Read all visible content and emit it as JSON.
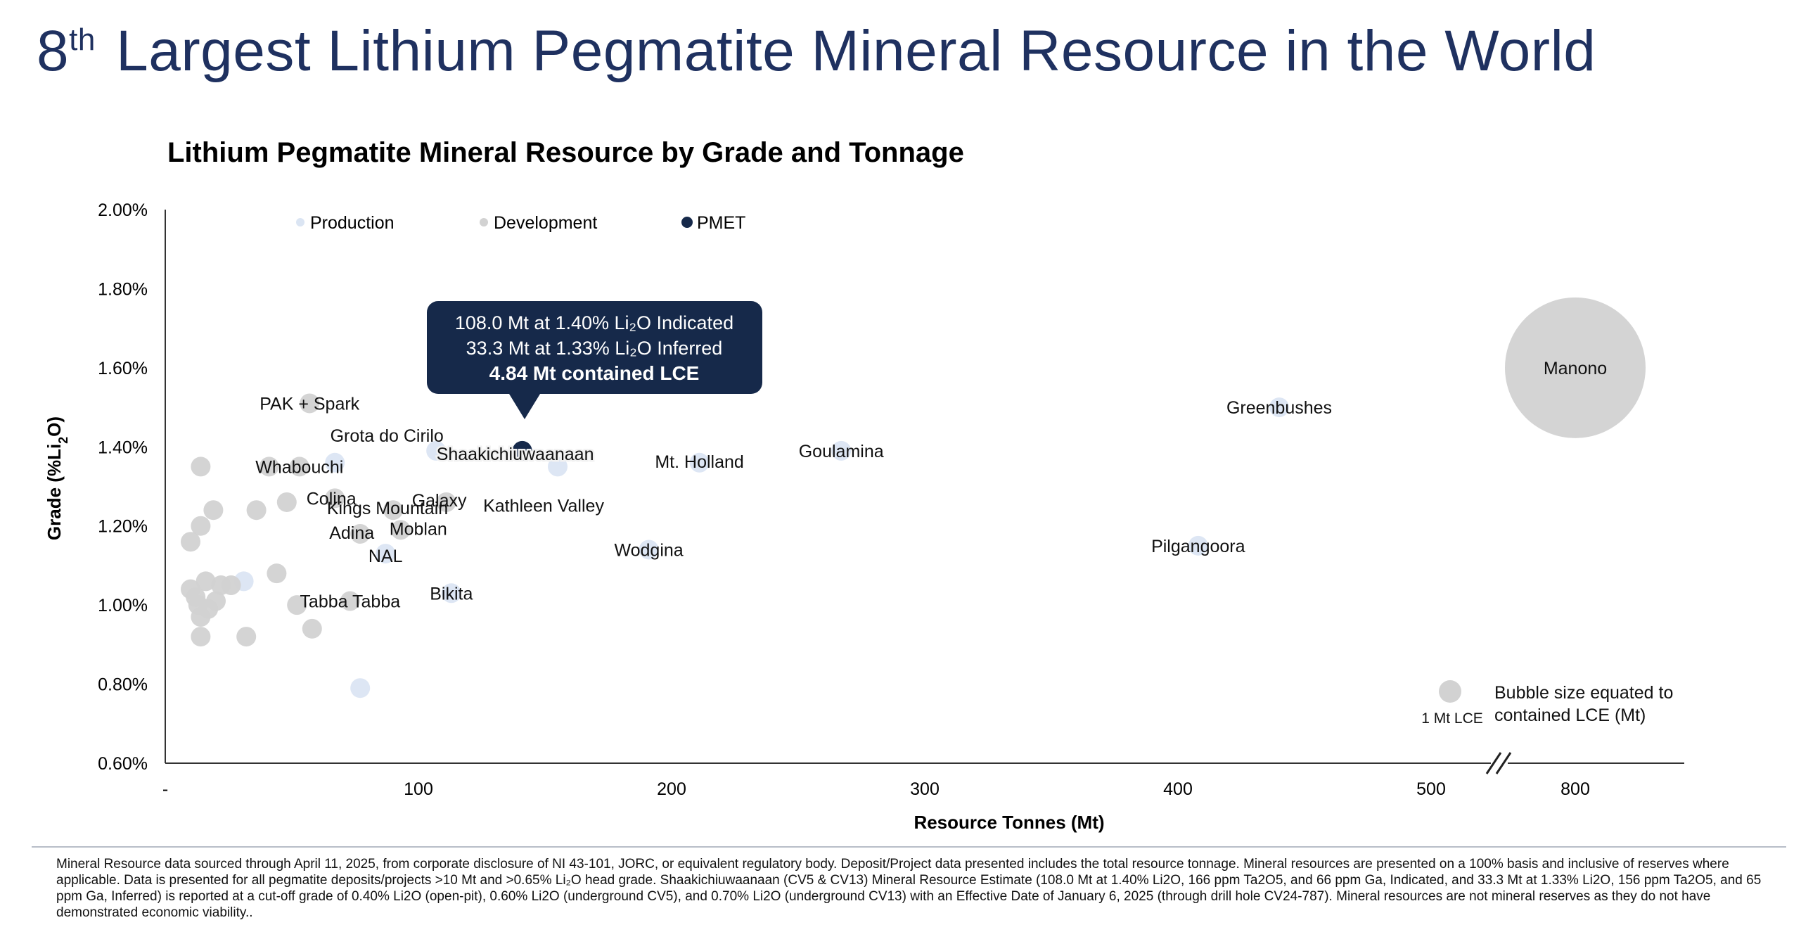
{
  "page": {
    "title_sup": "th",
    "title_num": "8",
    "title_rest": "Largest Lithium Pegmatite Mineral Resource in the World"
  },
  "chart_data": {
    "type": "bubble",
    "title": "Lithium Pegmatite Mineral Resource by Grade and Tonnage",
    "xlabel": "Resource Tonnes (Mt)",
    "ylabel": "Grade (%Li2O)",
    "ylim": [
      0.006,
      0.02
    ],
    "y_ticks": [
      "2.00%",
      "1.80%",
      "1.60%",
      "1.40%",
      "1.20%",
      "1.00%",
      "0.80%",
      "0.60%"
    ],
    "x_ticks": [
      "-",
      "100",
      "200",
      "300",
      "400",
      "500",
      "800"
    ],
    "axis_break": "between 500 and 800",
    "legend": [
      {
        "name": "Production",
        "color": "#dbe5f3"
      },
      {
        "name": "Development",
        "color": "#d2d2d2"
      },
      {
        "name": "PMET",
        "color": "#16294a"
      }
    ],
    "colors": {
      "Production": "#dbe5f3",
      "Development": "#d2d2d2",
      "PMET": "#16294a"
    },
    "callout": {
      "line1": "108.0 Mt at 1.40% Li₂O Indicated",
      "line2": "33.3 Mt at 1.33% Li₂O Inferred",
      "line3": "4.84 Mt contained LCE"
    },
    "size_note": {
      "line1": "Bubble size equated to",
      "line2": "contained LCE (Mt)",
      "ref_label": "1 Mt LCE",
      "ref_value": 1
    },
    "labeled_points": [
      {
        "name": "Manono",
        "x": 800,
        "y": 0.016,
        "group": "Development"
      },
      {
        "name": "Greenbushes",
        "x": 440,
        "y": 0.015,
        "group": "Production"
      },
      {
        "name": "Pilgangoora",
        "x": 408,
        "y": 0.0115,
        "group": "Production"
      },
      {
        "name": "Goulamina",
        "x": 267,
        "y": 0.0139,
        "group": "Production"
      },
      {
        "name": "Mt. Holland",
        "x": 211,
        "y": 0.0136,
        "group": "Production"
      },
      {
        "name": "Wodgina",
        "x": 191,
        "y": 0.0114,
        "group": "Production"
      },
      {
        "name": "Kathleen Valley",
        "x": 155,
        "y": 0.0135,
        "group": "Production"
      },
      {
        "name": "Shaakichiuwaanaan",
        "x": 141,
        "y": 0.0139,
        "group": "PMET"
      },
      {
        "name": "Grota do Cirilo",
        "x": 107,
        "y": 0.0139,
        "group": "Production"
      },
      {
        "name": "Galaxy",
        "x": 111,
        "y": 0.0126,
        "group": "Development"
      },
      {
        "name": "Kings Mountain",
        "x": 90,
        "y": 0.0124,
        "group": "Development"
      },
      {
        "name": "Moblan",
        "x": 93,
        "y": 0.0119,
        "group": "Development"
      },
      {
        "name": "NAL",
        "x": 87,
        "y": 0.0113,
        "group": "Production"
      },
      {
        "name": "Adina",
        "x": 77,
        "y": 0.0118,
        "group": "Development"
      },
      {
        "name": "Bikita",
        "x": 113,
        "y": 0.0103,
        "group": "Production"
      },
      {
        "name": "Tabba Tabba",
        "x": 73,
        "y": 0.0101,
        "group": "Development"
      },
      {
        "name": "PAK + Spark",
        "x": 57,
        "y": 0.0151,
        "group": "Development"
      },
      {
        "name": "Whabouchi",
        "x": 53,
        "y": 0.0135,
        "group": "Development"
      },
      {
        "name": "Colina",
        "x": 67,
        "y": 0.0127,
        "group": "Development"
      }
    ],
    "unlabeled_points": [
      {
        "x": 67,
        "y": 0.0136,
        "group": "Production"
      },
      {
        "x": 41,
        "y": 0.0135,
        "group": "Development"
      },
      {
        "x": 48,
        "y": 0.0126,
        "group": "Development"
      },
      {
        "x": 36,
        "y": 0.0124,
        "group": "Development"
      },
      {
        "x": 19,
        "y": 0.0124,
        "group": "Development"
      },
      {
        "x": 14,
        "y": 0.0135,
        "group": "Development"
      },
      {
        "x": 14,
        "y": 0.012,
        "group": "Development"
      },
      {
        "x": 10,
        "y": 0.0116,
        "group": "Development"
      },
      {
        "x": 44,
        "y": 0.0108,
        "group": "Development"
      },
      {
        "x": 31,
        "y": 0.0106,
        "group": "Production"
      },
      {
        "x": 26,
        "y": 0.0105,
        "group": "Development"
      },
      {
        "x": 22,
        "y": 0.0105,
        "group": "Development"
      },
      {
        "x": 16,
        "y": 0.0106,
        "group": "Development"
      },
      {
        "x": 10,
        "y": 0.0104,
        "group": "Development"
      },
      {
        "x": 12,
        "y": 0.0102,
        "group": "Development"
      },
      {
        "x": 20,
        "y": 0.0101,
        "group": "Development"
      },
      {
        "x": 13,
        "y": 0.01,
        "group": "Development"
      },
      {
        "x": 17,
        "y": 0.0099,
        "group": "Development"
      },
      {
        "x": 14,
        "y": 0.0097,
        "group": "Development"
      },
      {
        "x": 52,
        "y": 0.01,
        "group": "Development"
      },
      {
        "x": 58,
        "y": 0.0094,
        "group": "Development"
      },
      {
        "x": 32,
        "y": 0.0092,
        "group": "Development"
      },
      {
        "x": 14,
        "y": 0.0092,
        "group": "Development"
      },
      {
        "x": 77,
        "y": 0.0079,
        "group": "Production"
      }
    ]
  },
  "footnote": "Mineral Resource data sourced through April 11, 2025, from corporate disclosure of NI 43-101, JORC, or equivalent regulatory body. Deposit/Project data presented includes the total resource tonnage. Mineral resources are presented on a 100% basis and inclusive of reserves where applicable. Data is presented for all pegmatite deposits/projects >10 Mt and >0.65% Li₂O head grade. Shaakichiuwaanaan (CV5 & CV13) Mineral Resource Estimate (108.0 Mt at 1.40% Li2O, 166 ppm Ta2O5, and 66 ppm Ga, Indicated, and 33.3 Mt at 1.33% Li2O, 156 ppm Ta2O5, and 65 ppm Ga, Inferred) is reported at a cut-off grade of 0.40% Li2O (open-pit), 0.60% Li2O (underground CV5), and 0.70% Li2O (underground CV13) with an Effective Date of January 6, 2025 (through drill hole CV24-787). Mineral resources are not mineral reserves as they do not have demonstrated economic viability.."
}
